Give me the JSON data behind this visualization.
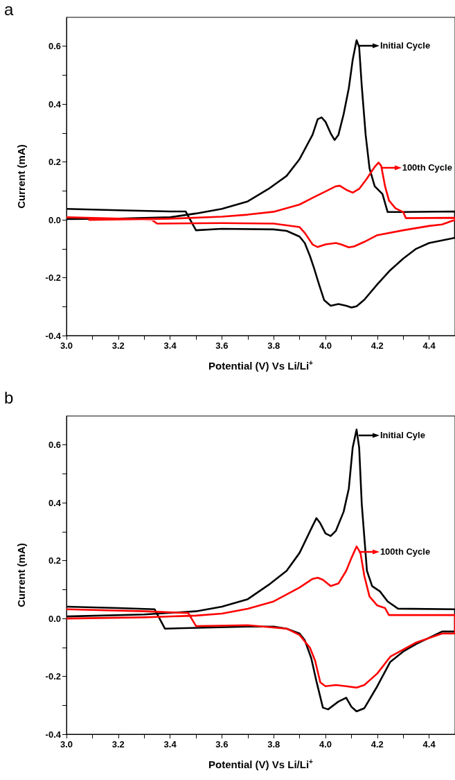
{
  "chart_data": [
    {
      "type": "line",
      "title": "a",
      "xlabel": "Potential (V) Vs Li/Li$^{+}$",
      "ylabel": "Current (mA)",
      "xlim": [
        3.0,
        4.5
      ],
      "ylim": [
        -0.4,
        0.7
      ],
      "xticks": [
        {
          "value": 3.0,
          "label": "3.0"
        },
        {
          "value": 3.1,
          "label": null
        },
        3.2,
        {
          "value": 3.3,
          "label": null
        },
        3.4,
        {
          "value": 3.5,
          "label": null
        },
        3.6,
        {
          "value": 3.7,
          "label": null
        },
        3.8,
        {
          "value": 3.9,
          "label": null
        },
        {
          "value": 4.0,
          "label": "4.0"
        },
        {
          "value": 4.1,
          "label": null
        },
        4.2,
        {
          "value": 4.3,
          "label": null
        },
        4.4
      ],
      "yticks": [
        -0.4,
        {
          "value": -0.3,
          "label": null
        },
        -0.2,
        {
          "value": -0.1,
          "label": null
        },
        {
          "value": 0,
          "label": "0.0"
        },
        {
          "value": 0.1,
          "label": null
        },
        0.2,
        {
          "value": 0.3,
          "label": null
        },
        0.4,
        {
          "value": 0.5,
          "label": null
        },
        0.6
      ],
      "grid": false,
      "legend": "top right",
      "series": [
        {
          "name": "Initial Cycle",
          "color": "#000000",
          "x": [
            3.0,
            3.2,
            3.4,
            3.5,
            3.6,
            3.7,
            3.78,
            3.85,
            3.9,
            3.95,
            3.97,
            3.985,
            4.0,
            4.02,
            4.035,
            4.05,
            4.07,
            4.09,
            4.105,
            4.12,
            4.13,
            4.14,
            4.155,
            4.17,
            4.19,
            4.22,
            4.24,
            4.3,
            4.5,
            4.5,
            4.4,
            4.35,
            4.3,
            4.25,
            4.2,
            4.15,
            4.12,
            4.1,
            4.08,
            4.05,
            4.02,
            3.995,
            3.975,
            3.955,
            3.94,
            3.92,
            3.9,
            3.85,
            3.8,
            3.6,
            3.5,
            3.46,
            3.4,
            3.2,
            3.0
          ],
          "values": [
            0.003,
            0.004,
            0.009,
            0.022,
            0.038,
            0.064,
            0.107,
            0.152,
            0.21,
            0.294,
            0.348,
            0.354,
            0.339,
            0.299,
            0.276,
            0.294,
            0.365,
            0.455,
            0.553,
            0.621,
            0.597,
            0.463,
            0.294,
            0.178,
            0.116,
            0.089,
            0.027,
            0.027,
            0.029,
            -0.062,
            -0.08,
            -0.1,
            -0.134,
            -0.174,
            -0.223,
            -0.276,
            -0.299,
            -0.303,
            -0.297,
            -0.291,
            -0.297,
            -0.278,
            -0.223,
            -0.165,
            -0.125,
            -0.08,
            -0.058,
            -0.038,
            -0.033,
            -0.031,
            -0.036,
            0.029,
            0.029,
            0.033,
            0.038
          ]
        },
        {
          "name": "100th Cycle",
          "color": "#ff0000",
          "x": [
            3.085,
            3.4,
            3.6,
            3.7,
            3.8,
            3.9,
            3.95,
            4.0,
            4.04,
            4.055,
            4.08,
            4.105,
            4.13,
            4.16,
            4.19,
            4.205,
            4.215,
            4.23,
            4.245,
            4.27,
            4.3,
            4.31,
            4.5,
            4.5,
            4.45,
            4.4,
            4.3,
            4.2,
            4.15,
            4.11,
            4.09,
            4.06,
            4.04,
            4.0,
            3.97,
            3.95,
            3.92,
            3.9,
            3.8,
            3.6,
            3.35,
            3.33,
            3.2,
            3.0
          ],
          "values": [
            0.0,
            0.004,
            0.011,
            0.018,
            0.028,
            0.053,
            0.076,
            0.098,
            0.116,
            0.118,
            0.104,
            0.094,
            0.107,
            0.143,
            0.183,
            0.198,
            0.187,
            0.116,
            0.067,
            0.04,
            0.027,
            0.006,
            0.007,
            0.0,
            -0.016,
            -0.021,
            -0.036,
            -0.053,
            -0.076,
            -0.092,
            -0.095,
            -0.085,
            -0.08,
            -0.085,
            -0.094,
            -0.085,
            -0.045,
            -0.025,
            -0.013,
            -0.011,
            -0.013,
            0.0,
            0.004,
            0.009
          ]
        }
      ]
    },
    {
      "type": "line",
      "title": "b",
      "xlabel": "Potential (V) Vs Li/Li$^{+}$",
      "ylabel": "Current (mA)",
      "xlim": [
        3.0,
        4.5
      ],
      "ylim": [
        -0.4,
        0.7
      ],
      "xticks": [
        {
          "value": 3.0,
          "label": "3.0"
        },
        {
          "value": 3.1,
          "label": null
        },
        3.2,
        {
          "value": 3.3,
          "label": null
        },
        3.4,
        {
          "value": 3.5,
          "label": null
        },
        3.6,
        {
          "value": 3.7,
          "label": null
        },
        3.8,
        {
          "value": 3.9,
          "label": null
        },
        {
          "value": 4.0,
          "label": "4.0"
        },
        {
          "value": 4.1,
          "label": null
        },
        4.2,
        {
          "value": 4.3,
          "label": null
        },
        4.4
      ],
      "yticks": [
        -0.4,
        {
          "value": -0.3,
          "label": null
        },
        -0.2,
        {
          "value": -0.1,
          "label": null
        },
        {
          "value": 0,
          "label": "0.0"
        },
        {
          "value": 0.1,
          "label": null
        },
        0.2,
        {
          "value": 0.3,
          "label": null
        },
        0.4,
        {
          "value": 0.5,
          "label": null
        },
        0.6
      ],
      "grid": false,
      "legend": "top right",
      "series": [
        {
          "name": "Initial Cyle",
          "color": "#000000",
          "x": [
            3.0,
            3.3,
            3.5,
            3.6,
            3.7,
            3.78,
            3.85,
            3.9,
            3.95,
            3.965,
            3.98,
            4.0,
            4.02,
            4.04,
            4.07,
            4.09,
            4.105,
            4.12,
            4.13,
            4.14,
            4.16,
            4.18,
            4.21,
            4.24,
            4.28,
            4.5,
            4.5,
            4.45,
            4.35,
            4.3,
            4.25,
            4.2,
            4.15,
            4.12,
            4.1,
            4.08,
            4.05,
            4.01,
            3.99,
            3.965,
            3.945,
            3.92,
            3.9,
            3.85,
            3.8,
            3.7,
            3.38,
            3.34,
            3.2,
            3.0
          ],
          "values": [
            0.007,
            0.014,
            0.025,
            0.041,
            0.067,
            0.116,
            0.165,
            0.227,
            0.32,
            0.347,
            0.329,
            0.294,
            0.285,
            0.303,
            0.369,
            0.449,
            0.591,
            0.653,
            0.591,
            0.396,
            0.165,
            0.112,
            0.094,
            0.059,
            0.034,
            0.032,
            -0.045,
            -0.045,
            -0.088,
            -0.114,
            -0.15,
            -0.234,
            -0.31,
            -0.321,
            -0.305,
            -0.274,
            -0.287,
            -0.314,
            -0.308,
            -0.217,
            -0.137,
            -0.075,
            -0.052,
            -0.035,
            -0.028,
            -0.028,
            -0.035,
            0.032,
            0.036,
            0.041
          ]
        },
        {
          "name": "100th Cycle",
          "color": "#ff0000",
          "x": [
            3.0,
            3.3,
            3.5,
            3.6,
            3.7,
            3.8,
            3.9,
            3.95,
            3.97,
            3.99,
            4.02,
            4.05,
            4.08,
            4.1,
            4.12,
            4.135,
            4.15,
            4.17,
            4.2,
            4.23,
            4.245,
            4.5,
            4.5,
            4.45,
            4.35,
            4.25,
            4.2,
            4.15,
            4.12,
            4.08,
            4.04,
            4.0,
            3.98,
            3.96,
            3.94,
            3.9,
            3.85,
            3.7,
            3.5,
            3.47,
            3.3,
            3.0
          ],
          "values": [
            0.0,
            0.004,
            0.01,
            0.017,
            0.034,
            0.059,
            0.107,
            0.137,
            0.141,
            0.134,
            0.112,
            0.121,
            0.165,
            0.209,
            0.249,
            0.227,
            0.147,
            0.076,
            0.045,
            0.036,
            0.012,
            0.012,
            -0.052,
            -0.052,
            -0.083,
            -0.132,
            -0.19,
            -0.23,
            -0.239,
            -0.234,
            -0.23,
            -0.234,
            -0.221,
            -0.146,
            -0.101,
            -0.057,
            -0.035,
            -0.023,
            -0.026,
            0.019,
            0.025,
            0.032
          ]
        }
      ]
    }
  ]
}
